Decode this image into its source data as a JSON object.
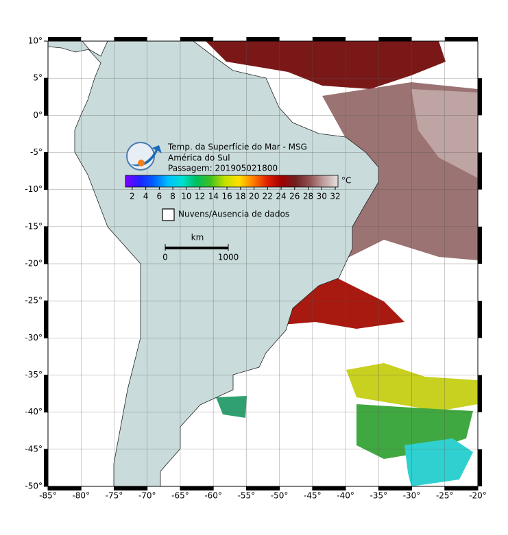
{
  "title_lines": [
    "Temp. da Superfície do Mar - MSG",
    "América do Sul",
    "Passagem: 201905021800"
  ],
  "map": {
    "xlim": [
      -85,
      -20
    ],
    "ylim": [
      -50,
      10
    ],
    "grid": true,
    "xticks": [
      {
        "value": -85,
        "label": "-85°"
      },
      {
        "value": -80,
        "label": "-80°"
      },
      {
        "value": -75,
        "label": "-75°"
      },
      {
        "value": -70,
        "label": "-70°"
      },
      {
        "value": -65,
        "label": "-65°"
      },
      {
        "value": -60,
        "label": "-60°"
      },
      {
        "value": -55,
        "label": "-55°"
      },
      {
        "value": -50,
        "label": "-50°"
      },
      {
        "value": -45,
        "label": "-45°"
      },
      {
        "value": -40,
        "label": "-40°"
      },
      {
        "value": -35,
        "label": "-35°"
      },
      {
        "value": -30,
        "label": "-30°"
      },
      {
        "value": -25,
        "label": "-25°"
      },
      {
        "value": -20,
        "label": "-20°"
      }
    ],
    "yticks": [
      {
        "value": 10,
        "label": "10°"
      },
      {
        "value": 5,
        "label": "5°"
      },
      {
        "value": 0,
        "label": "0°"
      },
      {
        "value": -5,
        "label": "-5°"
      },
      {
        "value": -10,
        "label": "-10°"
      },
      {
        "value": -15,
        "label": "-15°"
      },
      {
        "value": -20,
        "label": "-20°"
      },
      {
        "value": -25,
        "label": "-25°"
      },
      {
        "value": -30,
        "label": "-30°"
      },
      {
        "value": -35,
        "label": "-35°"
      },
      {
        "value": -40,
        "label": "-40°"
      },
      {
        "value": -45,
        "label": "-45°"
      },
      {
        "value": -50,
        "label": "-50°"
      }
    ]
  },
  "colorbar": {
    "unit": "°C",
    "clim": [
      1,
      32.4
    ],
    "ticks": [
      2,
      4,
      6,
      8,
      10,
      12,
      14,
      16,
      18,
      20,
      22,
      24,
      26,
      28,
      30,
      32
    ],
    "colormap": [
      "#8000ff",
      "#2020ff",
      "#0060ff",
      "#00c0ff",
      "#00e0d0",
      "#00c060",
      "#40c020",
      "#c0e000",
      "#ffe000",
      "#ff8000",
      "#e02000",
      "#a00000",
      "#702020",
      "#905050",
      "#c0a0a0",
      "#e8e0e0"
    ]
  },
  "legend": {
    "label": "Nuvens/Ausencia de dados"
  },
  "scale_bar": {
    "unit": "km",
    "ticks": [
      0,
      1000
    ]
  }
}
